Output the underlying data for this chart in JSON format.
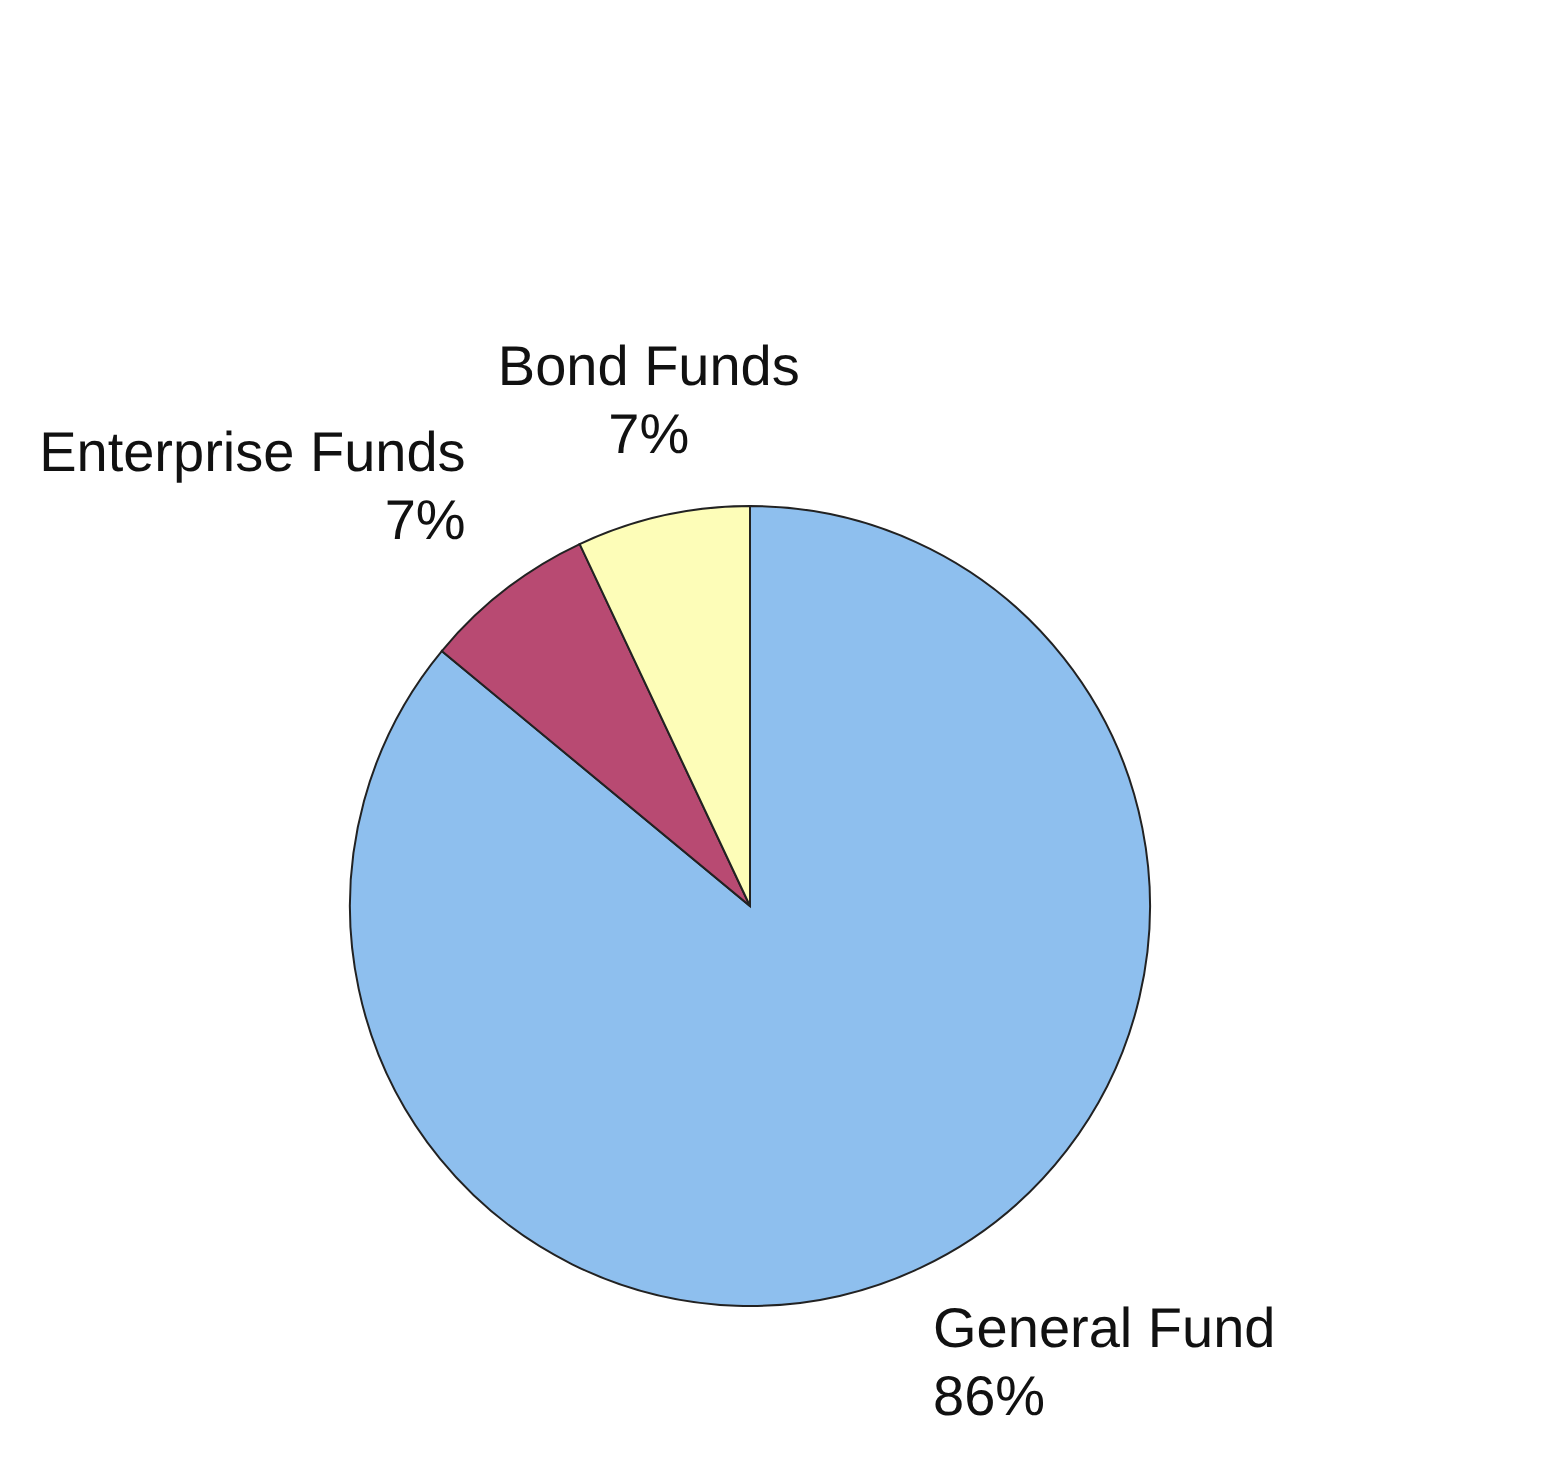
{
  "chart_data": {
    "type": "pie",
    "categories": [
      "General Fund",
      "Enterprise Funds",
      "Bond Funds"
    ],
    "values": [
      86,
      7,
      7
    ],
    "value_labels": [
      "86%",
      "7%",
      "7%"
    ],
    "colors": [
      "#8ebfee",
      "#b84a72",
      "#fdfdb8"
    ],
    "legend": false
  }
}
